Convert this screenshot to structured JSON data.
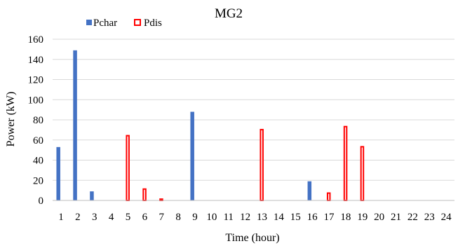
{
  "chart_data": {
    "type": "bar",
    "title": "MG2",
    "xlabel": "Time (hour)",
    "ylabel": "Power (kW)",
    "ylim": [
      0,
      160
    ],
    "yticks": [
      0,
      20,
      40,
      60,
      80,
      100,
      120,
      140,
      160
    ],
    "grid": true,
    "legend_position": "top",
    "categories": [
      "1",
      "2",
      "3",
      "4",
      "5",
      "6",
      "7",
      "8",
      "9",
      "10",
      "11",
      "12",
      "13",
      "14",
      "15",
      "16",
      "17",
      "18",
      "19",
      "20",
      "21",
      "22",
      "23",
      "24"
    ],
    "series": [
      {
        "name": "Pchar",
        "color": "#4472c4",
        "style": "filled",
        "values": [
          53,
          149,
          9,
          0,
          0,
          0,
          0,
          0,
          88,
          0,
          0,
          0,
          0,
          0,
          0,
          19,
          0,
          0,
          0,
          0,
          0,
          0,
          0,
          0
        ]
      },
      {
        "name": "Pdis",
        "color": "#ff0000",
        "style": "outline",
        "values": [
          0,
          0,
          0,
          0,
          65,
          12,
          2,
          0,
          0,
          0,
          0,
          0,
          71,
          0,
          0,
          0,
          8,
          74,
          54,
          0,
          0,
          0,
          0,
          0
        ]
      }
    ]
  }
}
